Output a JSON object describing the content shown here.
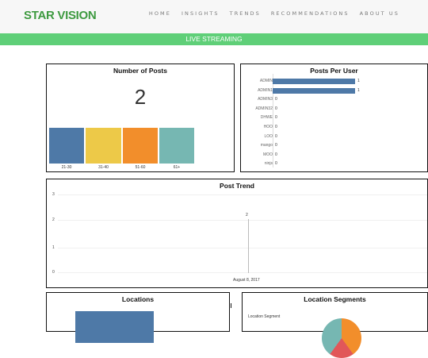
{
  "header": {
    "logo": "STAR VISION",
    "nav": [
      "HOME",
      "INSIGHTS",
      "TRENDS",
      "RECOMMENDATIONS",
      "ABOUT US"
    ]
  },
  "banner": "LIVE STREAMING",
  "colors": {
    "brand_green": "#3e9a40",
    "banner_green": "#5fcf78",
    "blue": "#4e79a7",
    "yellow": "#edc948",
    "orange": "#f28e2b",
    "teal": "#76b7b2"
  },
  "posts_panel": {
    "title": "Number of Posts",
    "count": "2",
    "age_groups": [
      {
        "label": "21-30",
        "color": "#4e79a7"
      },
      {
        "label": "31-40",
        "color": "#edc948"
      },
      {
        "label": "51-60",
        "color": "#f28e2b"
      },
      {
        "label": "61+",
        "color": "#76b7b2"
      }
    ]
  },
  "user_panel": {
    "title": "Posts Per User",
    "users": [
      {
        "name": "ADMIN",
        "value": "1"
      },
      {
        "name": "ADMIN1",
        "value": "1"
      },
      {
        "name": "ADMIN3",
        "value": "0"
      },
      {
        "name": "ADMIN32",
        "value": "0"
      },
      {
        "name": "DHWE",
        "value": "0"
      },
      {
        "name": "HOO",
        "value": "0"
      },
      {
        "name": "LOO",
        "value": "0"
      },
      {
        "name": "mango",
        "value": "0"
      },
      {
        "name": "MOO",
        "value": "0"
      },
      {
        "name": "ninjs",
        "value": "0"
      }
    ]
  },
  "trend_panel": {
    "title": "Post Trend",
    "y_ticks": [
      "3",
      "2",
      "1",
      "0"
    ],
    "point_label": "2",
    "x_label": "August 8, 2017"
  },
  "locations_panel": {
    "title": "Locations"
  },
  "segments_panel": {
    "title": "Location Segments",
    "legend_title": "Location Segment"
  },
  "chart_data": [
    {
      "type": "bar",
      "title": "Posts Per User",
      "categories": [
        "ADMIN",
        "ADMIN1",
        "ADMIN3",
        "ADMIN32",
        "DHWE",
        "HOO",
        "LOO",
        "mango",
        "MOO",
        "ninjs"
      ],
      "values": [
        1,
        1,
        0,
        0,
        0,
        0,
        0,
        0,
        0,
        0
      ]
    },
    {
      "type": "line",
      "title": "Post Trend",
      "x": [
        "August 8, 2017"
      ],
      "values": [
        2
      ],
      "ylim": [
        0,
        3
      ]
    }
  ]
}
